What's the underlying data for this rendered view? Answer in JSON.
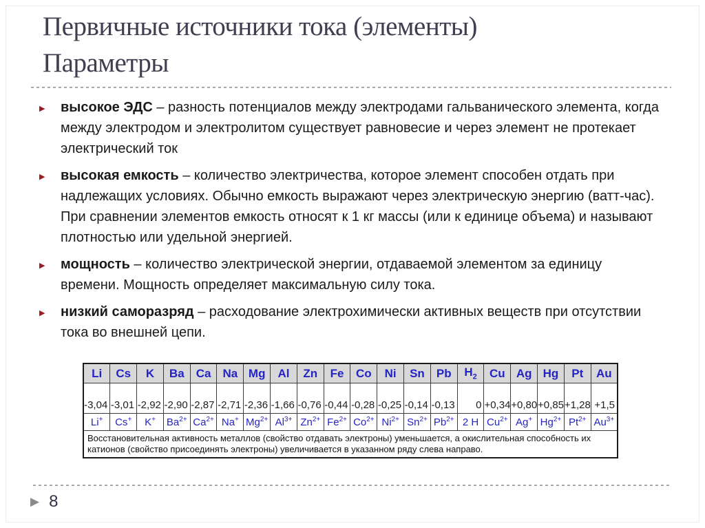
{
  "slide": {
    "title_line1": "Первичные источники тока (элементы)",
    "title_line2": "Параметры",
    "page_number": "8",
    "bullet_marker_glyph": "▶",
    "page_marker_glyph": "▶"
  },
  "bullets": [
    {
      "lead": "высокое ЭДС",
      "text": " – разность потенциалов между электродами гальванического элемента, когда между электродом и электролитом существует равновесие и через элемент не протекает электрический ток"
    },
    {
      "lead": "высокая емкость",
      "text": " – количество электричества, которое элемент способен отдать при надлежащих условиях. Обычно емкость выражают через электрическую энергию (ватт-час). При сравнении элементов емкость относят к 1 кг массы (или к единице объема) и называют плотностью или удельной энергией."
    },
    {
      "lead": "мощность",
      "text": " – количество электрической энергии, отдаваемой элементом за единицу времени. Мощность определяет максимальную силу тока."
    },
    {
      "lead": "низкий саморазряд",
      "text": " – расходование электрохимически активных веществ при отсутствии тока во внешней цепи."
    }
  ],
  "table": {
    "columns": [
      {
        "symbol": "Li",
        "symbol_sub": "",
        "potential": "-3,04",
        "ion": "Li",
        "ion_sup": "+"
      },
      {
        "symbol": "Cs",
        "symbol_sub": "",
        "potential": "-3,01",
        "ion": "Cs",
        "ion_sup": "+"
      },
      {
        "symbol": "K",
        "symbol_sub": "",
        "potential": "-2,92",
        "ion": "K",
        "ion_sup": "+"
      },
      {
        "symbol": "Ba",
        "symbol_sub": "",
        "potential": "-2,90",
        "ion": "Ba",
        "ion_sup": "2+"
      },
      {
        "symbol": "Ca",
        "symbol_sub": "",
        "potential": "-2,87",
        "ion": "Ca",
        "ion_sup": "2+"
      },
      {
        "symbol": "Na",
        "symbol_sub": "",
        "potential": "-2,71",
        "ion": "Na",
        "ion_sup": "+"
      },
      {
        "symbol": "Mg",
        "symbol_sub": "",
        "potential": "-2,36",
        "ion": "Mg",
        "ion_sup": "2+"
      },
      {
        "symbol": "Al",
        "symbol_sub": "",
        "potential": "-1,66",
        "ion": "Al",
        "ion_sup": "3+"
      },
      {
        "symbol": "Zn",
        "symbol_sub": "",
        "potential": "-0,76",
        "ion": "Zn",
        "ion_sup": "2+"
      },
      {
        "symbol": "Fe",
        "symbol_sub": "",
        "potential": "-0,44",
        "ion": "Fe",
        "ion_sup": "2+"
      },
      {
        "symbol": "Co",
        "symbol_sub": "",
        "potential": "-0,28",
        "ion": "Co",
        "ion_sup": "2+"
      },
      {
        "symbol": "Ni",
        "symbol_sub": "",
        "potential": "-0,25",
        "ion": "Ni",
        "ion_sup": "2+"
      },
      {
        "symbol": "Sn",
        "symbol_sub": "",
        "potential": "-0,14",
        "ion": "Sn",
        "ion_sup": "2+"
      },
      {
        "symbol": "Pb",
        "symbol_sub": "",
        "potential": "-0,13",
        "ion": "Pb",
        "ion_sup": "2+"
      },
      {
        "symbol": "H",
        "symbol_sub": "2",
        "potential": "0",
        "ion": "2 H",
        "ion_sup": ""
      },
      {
        "symbol": "Cu",
        "symbol_sub": "",
        "potential": "+0,34",
        "ion": "Cu",
        "ion_sup": "2+"
      },
      {
        "symbol": "Ag",
        "symbol_sub": "",
        "potential": "+0,80",
        "ion": "Ag",
        "ion_sup": "+"
      },
      {
        "symbol": "Hg",
        "symbol_sub": "",
        "potential": "+0,85",
        "ion": "Hg",
        "ion_sup": "2+"
      },
      {
        "symbol": "Pt",
        "symbol_sub": "",
        "potential": "+1,28",
        "ion": "Pt",
        "ion_sup": "2+"
      },
      {
        "symbol": "Au",
        "symbol_sub": "",
        "potential": "+1,5",
        "ion": "Au",
        "ion_sup": "3+"
      }
    ],
    "caption": "Восстановительная активность металлов (свойство отдавать электроны) уменьшается,  а окислительная способность их катионов (свойство присоединять электроны) увеличивается в указанном ряду слева направо."
  },
  "colors": {
    "title": "#3f3f51",
    "body_text": "#1a1a1a",
    "bullet_marker": "#9b1c1f",
    "table_blue": "#2424c4",
    "table_header_bg": "#d8d8d8",
    "divider": "#a8a8a8",
    "marker_gray": "#8a8a8a",
    "page_number": "#32324a"
  }
}
